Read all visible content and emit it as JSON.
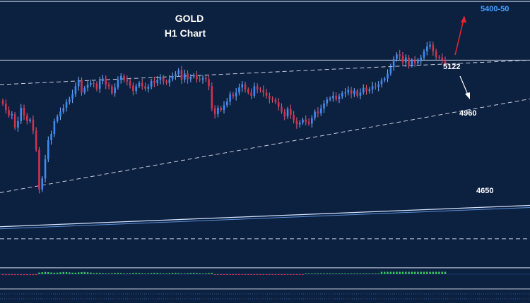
{
  "chart_data": {
    "type": "candlestick",
    "title": "GOLD",
    "subtitle": "H1 Chart",
    "colors": {
      "background": "#0c2040",
      "bull": "#3d8cf0",
      "bear": "#d0334a",
      "wick": "#7fb2ff",
      "line": "#c3cede",
      "target_text": "#4aa3ff",
      "arrow_up": "#e02632",
      "arrow_down": "#ffffff",
      "osc_up": "#38c25b",
      "osc_down": "#d0334a"
    },
    "annotations": {
      "target": "5400-50",
      "level_1": "5122",
      "level_2": "4960",
      "level_3": "4650"
    },
    "levels": {
      "horizontal": 5122,
      "upper_trend_start": 5045,
      "rising_trend_start": 4705,
      "rising_trend_end": 5000,
      "lower_channel_start": 4598,
      "lower_channel_end": 4665,
      "dashed_bottom": 4560
    },
    "ylim": [
      4480,
      5300
    ],
    "closes": [
      4985,
      4965,
      4948,
      4952,
      4910,
      4930,
      4972,
      4948,
      4930,
      4935,
      4900,
      4840,
      4715,
      4750,
      4810,
      4870,
      4890,
      4930,
      4945,
      4960,
      4972,
      4990,
      5000,
      5015,
      5040,
      5060,
      5020,
      5035,
      5045,
      5050,
      5048,
      5032,
      5056,
      5064,
      5045,
      5040,
      5018,
      5036,
      5060,
      5072,
      5060,
      5055,
      5042,
      5025,
      5040,
      5050,
      5040,
      5032,
      5038,
      5056,
      5050,
      5060,
      5068,
      5055,
      5050,
      5062,
      5072,
      5078,
      5090,
      5060,
      5080,
      5062,
      5070,
      5075,
      5062,
      5060,
      5066,
      5062,
      5040,
      4970,
      4952,
      4972,
      4965,
      4980,
      4992,
      5015,
      5008,
      5020,
      5036,
      5046,
      5030,
      5020,
      5010,
      5040,
      5030,
      5028,
      5020,
      5010,
      5000,
      4998,
      4990,
      4975,
      4960,
      4945,
      4968,
      4950,
      4932,
      4920,
      4925,
      4935,
      4928,
      4922,
      4940,
      4960,
      4955,
      4970,
      4986,
      4998,
      5002,
      5010,
      4999,
      5008,
      5018,
      5020,
      5028,
      5016,
      5026,
      5010,
      5020,
      5035,
      5025,
      5030,
      5040,
      5038,
      5046,
      5058,
      5064,
      5080,
      5100,
      5125,
      5140,
      5135,
      5115,
      5130,
      5105,
      5122,
      5112,
      5118,
      5130,
      5150,
      5165,
      5170,
      5150,
      5132,
      5130,
      5122,
      5112
    ]
  }
}
